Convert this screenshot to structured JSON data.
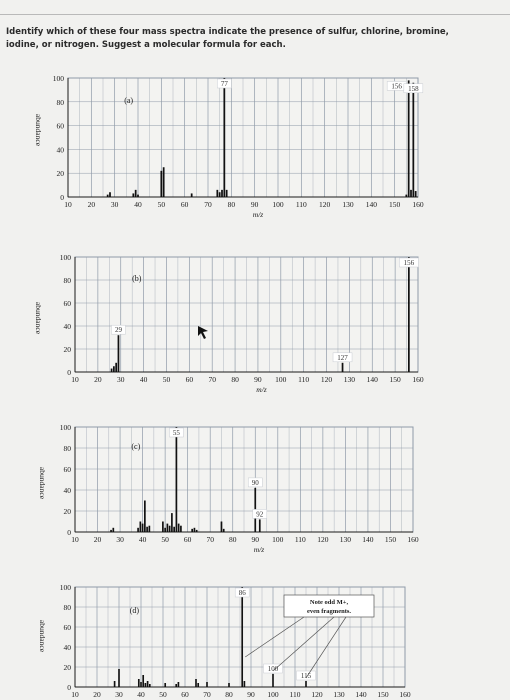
{
  "question": {
    "line1": "Identify which of these four mass spectra indicate the presence of sulfur, chlorine, bromine,",
    "line2": "iodine, or nitrogen. Suggest a molecular formula for each."
  },
  "colors": {
    "bar": "#111111",
    "grid": "#8f9aa8",
    "paper": "#f3f3f1",
    "ink": "#1a1a1a"
  },
  "chart_data": [
    {
      "type": "bar",
      "panel_label": "(a)",
      "xlabel": "m/z",
      "ylabel": "abundance",
      "xlim": [
        10,
        160
      ],
      "ylim": [
        0,
        100
      ],
      "xticks": [
        10,
        20,
        30,
        40,
        50,
        60,
        70,
        80,
        90,
        100,
        110,
        120,
        130,
        140,
        150,
        160
      ],
      "yticks": [
        0,
        20,
        40,
        60,
        80,
        100
      ],
      "grid": true,
      "peaks": [
        [
          27,
          2
        ],
        [
          28,
          4
        ],
        [
          38,
          3
        ],
        [
          39,
          6
        ],
        [
          40,
          2
        ],
        [
          50,
          22
        ],
        [
          51,
          25
        ],
        [
          63,
          3
        ],
        [
          74,
          6
        ],
        [
          75,
          4
        ],
        [
          76,
          6
        ],
        [
          77,
          100
        ],
        [
          78,
          6
        ],
        [
          155,
          2
        ],
        [
          156,
          98
        ],
        [
          157,
          6
        ],
        [
          158,
          96
        ],
        [
          159,
          5
        ]
      ],
      "peak_labels": [
        {
          "x": 77,
          "text": "77"
        },
        {
          "x": 156,
          "text": "156"
        },
        {
          "x": 158,
          "text": "158"
        }
      ]
    },
    {
      "type": "bar",
      "panel_label": "(b)",
      "xlabel": "m/z",
      "ylabel": "abundance",
      "xlim": [
        10,
        160
      ],
      "ylim": [
        0,
        100
      ],
      "xticks": [
        10,
        20,
        30,
        40,
        50,
        60,
        70,
        80,
        90,
        100,
        110,
        120,
        130,
        140,
        150,
        160
      ],
      "yticks": [
        0,
        20,
        40,
        60,
        80,
        100
      ],
      "grid": true,
      "peaks": [
        [
          26,
          3
        ],
        [
          27,
          5
        ],
        [
          28,
          8
        ],
        [
          29,
          32
        ],
        [
          127,
          8
        ],
        [
          156,
          100
        ]
      ],
      "peak_labels": [
        {
          "x": 29,
          "text": "29"
        },
        {
          "x": 127,
          "text": "127"
        },
        {
          "x": 156,
          "text": "156"
        }
      ]
    },
    {
      "type": "bar",
      "panel_label": "(c)",
      "xlabel": "m/z",
      "ylabel": "abundance",
      "xlim": [
        10,
        160
      ],
      "ylim": [
        0,
        100
      ],
      "xticks": [
        10,
        20,
        30,
        40,
        50,
        60,
        70,
        80,
        90,
        100,
        110,
        120,
        130,
        140,
        150,
        160
      ],
      "yticks": [
        0,
        20,
        40,
        60,
        80,
        100
      ],
      "grid": true,
      "peaks": [
        [
          26,
          2
        ],
        [
          27,
          4
        ],
        [
          38,
          4
        ],
        [
          39,
          10
        ],
        [
          40,
          8
        ],
        [
          41,
          30
        ],
        [
          42,
          5
        ],
        [
          43,
          6
        ],
        [
          49,
          10
        ],
        [
          50,
          4
        ],
        [
          51,
          8
        ],
        [
          52,
          6
        ],
        [
          53,
          18
        ],
        [
          54,
          5
        ],
        [
          55,
          100
        ],
        [
          56,
          8
        ],
        [
          57,
          6
        ],
        [
          62,
          3
        ],
        [
          63,
          4
        ],
        [
          64,
          2
        ],
        [
          75,
          10
        ],
        [
          76,
          3
        ],
        [
          90,
          42
        ],
        [
          92,
          12
        ]
      ],
      "peak_labels": [
        {
          "x": 55,
          "text": "55"
        },
        {
          "x": 90,
          "text": "90"
        },
        {
          "x": 92,
          "text": "92"
        }
      ]
    },
    {
      "type": "bar",
      "panel_label": "(d)",
      "xlabel": "m/z",
      "ylabel": "abundance",
      "xlim": [
        10,
        160
      ],
      "ylim": [
        0,
        100
      ],
      "xticks": [
        10,
        20,
        30,
        40,
        50,
        60,
        70,
        80,
        90,
        100,
        110,
        120,
        130,
        140,
        150,
        160
      ],
      "yticks": [
        0,
        20,
        40,
        60,
        80,
        100
      ],
      "grid": true,
      "peaks": [
        [
          28,
          6
        ],
        [
          30,
          18
        ],
        [
          39,
          8
        ],
        [
          40,
          5
        ],
        [
          41,
          12
        ],
        [
          42,
          4
        ],
        [
          43,
          6
        ],
        [
          44,
          3
        ],
        [
          51,
          4
        ],
        [
          56,
          3
        ],
        [
          57,
          5
        ],
        [
          65,
          8
        ],
        [
          66,
          4
        ],
        [
          70,
          5
        ],
        [
          80,
          4
        ],
        [
          86,
          100
        ],
        [
          87,
          6
        ],
        [
          100,
          13
        ],
        [
          115,
          6
        ]
      ],
      "peak_labels": [
        {
          "x": 86,
          "text": "86"
        },
        {
          "x": 100,
          "text": "100"
        },
        {
          "x": 115,
          "text": "115"
        }
      ],
      "annotation": {
        "line1": "Note odd M+,",
        "line2": "even fragments."
      }
    }
  ]
}
